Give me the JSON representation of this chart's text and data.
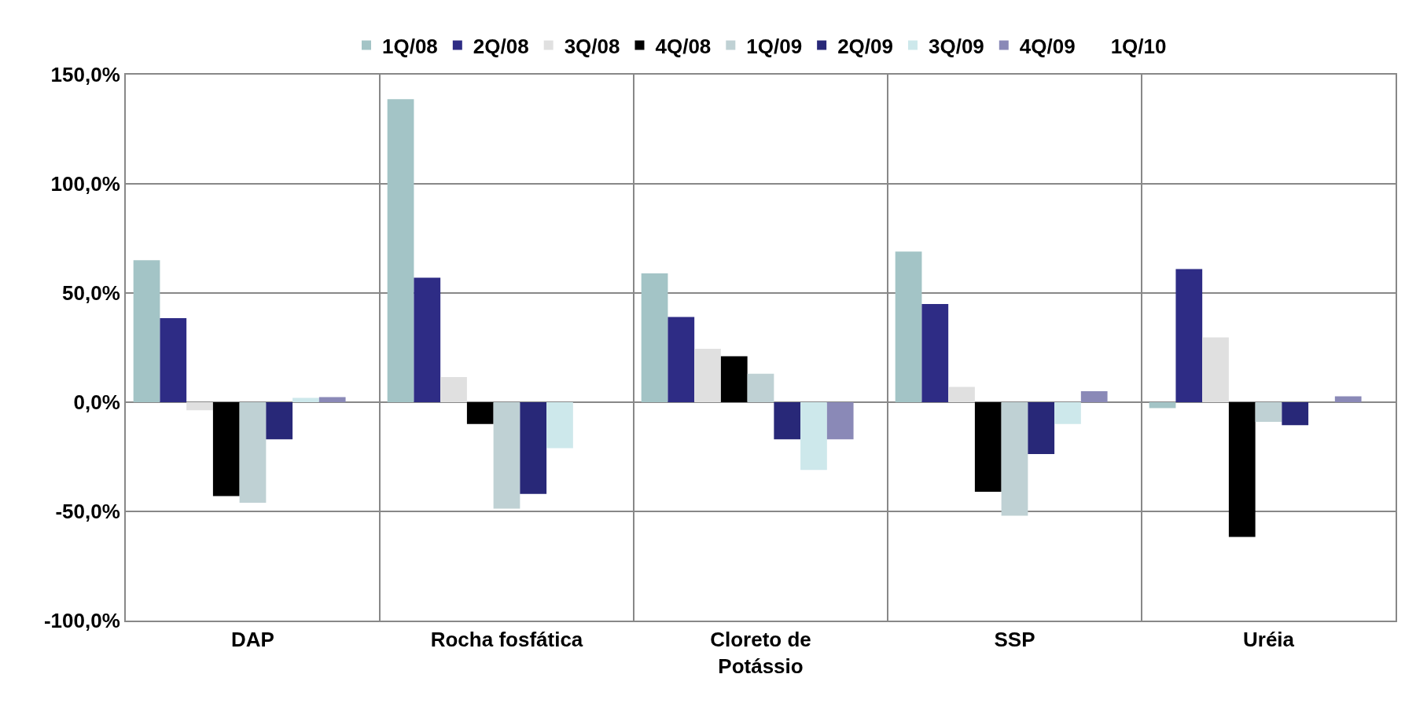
{
  "chart_data": {
    "type": "bar",
    "categories": [
      "DAP",
      "Rocha fosfática",
      "Cloreto de Potássio",
      "SSP",
      "Uréia"
    ],
    "series": [
      {
        "name": "1Q/08",
        "color": "#a3c4c6",
        "values": [
          65,
          138.8,
          59,
          69,
          -2.7
        ]
      },
      {
        "name": "2Q/08",
        "color": "#2e2c85",
        "values": [
          38.5,
          57,
          39,
          45,
          61
        ]
      },
      {
        "name": "3Q/08",
        "color": "#e0e0e0",
        "values": [
          -3.7,
          11.5,
          24.5,
          7,
          29.7
        ]
      },
      {
        "name": "4Q/08",
        "color": "#000000",
        "values": [
          -43,
          -10,
          21,
          -41,
          -61.7
        ]
      },
      {
        "name": "1Q/09",
        "color": "#bfd1d4",
        "values": [
          -46,
          -48.7,
          13,
          -52,
          -9
        ]
      },
      {
        "name": "2Q/09",
        "color": "#282878",
        "values": [
          -17,
          -42,
          -17,
          -23.7,
          -10.5
        ]
      },
      {
        "name": "3Q/09",
        "color": "#cde8eb",
        "values": [
          2,
          -21,
          -31,
          -10,
          0
        ]
      },
      {
        "name": "4Q/09",
        "color": "#8a89b7",
        "values": [
          2.3,
          0,
          -17,
          5,
          2.7
        ]
      },
      {
        "name": "1Q/10",
        "values": [
          null,
          null,
          null,
          null,
          null
        ]
      }
    ],
    "ylim": [
      -100,
      150
    ],
    "yticks": [
      {
        "value": -100,
        "label": "-100,0%"
      },
      {
        "value": -50,
        "label": "-50,0%"
      },
      {
        "value": 0,
        "label": "0,0%"
      },
      {
        "value": 50,
        "label": "50,0%"
      },
      {
        "value": 100,
        "label": "100,0%"
      },
      {
        "value": 150,
        "label": "150,0%"
      }
    ],
    "grid": true,
    "legend": "top"
  }
}
